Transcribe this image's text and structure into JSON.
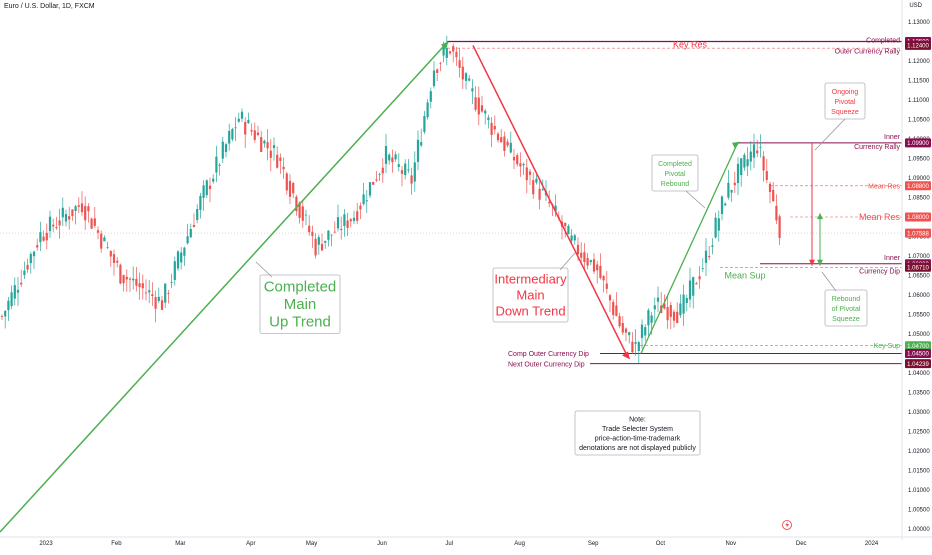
{
  "header": {
    "symbol": "Euro / U.S. Dollar, 1D, FXCM",
    "currency": "USD"
  },
  "colors": {
    "up_candle": "#26a69a",
    "down_candle": "#ef5350",
    "green_line": "#4caf50",
    "red_line": "#f23645",
    "maroon_line": "#880e4f",
    "dark_maroon_tag": "#7b1030"
  },
  "chart_data": {
    "type": "candlestick",
    "ylim": [
      1.0,
      1.1325
    ],
    "y_ticks": [
      "1.13000",
      "1.12500",
      "1.12000",
      "1.11500",
      "1.11000",
      "1.10500",
      "1.10000",
      "1.09500",
      "1.09000",
      "1.08500",
      "1.08000",
      "1.07500",
      "1.07000",
      "1.06500",
      "1.06000",
      "1.05500",
      "1.05000",
      "1.04500",
      "1.04000",
      "1.03500",
      "1.03000",
      "1.02500",
      "1.02000",
      "1.01500",
      "1.01000",
      "1.00500",
      "1.00000"
    ],
    "x_labels": [
      "2023",
      "Feb",
      "Mar",
      "Apr",
      "May",
      "Jun",
      "Jul",
      "Aug",
      "Sep",
      "Oct",
      "Nov",
      "Dec",
      "2024",
      "Feb"
    ],
    "price_tags": [
      {
        "value": 1.125,
        "text": "1.12500",
        "color": "#880e4f"
      },
      {
        "value": 1.124,
        "text": "1.12400",
        "color": "#7b1030"
      },
      {
        "value": 1.099,
        "text": "1.09900",
        "color": "#880e4f"
      },
      {
        "value": 1.088,
        "text": "1.08800",
        "color": "#ef5350"
      },
      {
        "value": 1.08,
        "text": "1.08000",
        "color": "#ef5350"
      },
      {
        "value": 1.07588,
        "text": "1.07588",
        "color": "#ef5350"
      },
      {
        "value": 1.068,
        "text": "1.06800",
        "color": "#880e4f"
      },
      {
        "value": 1.0671,
        "text": "1.06710",
        "color": "#7b1030"
      },
      {
        "value": 1.047,
        "text": "1.04700",
        "color": "#4caf50"
      },
      {
        "value": 1.045,
        "text": "1.04500",
        "color": "#880e4f"
      },
      {
        "value": 1.04239,
        "text": "1.04239",
        "color": "#7b1030"
      }
    ],
    "levels": [
      {
        "name": "Key Res",
        "value": 1.124
      },
      {
        "name": "Completed Outer Currency Rally",
        "value": 1.125
      },
      {
        "name": "Inner Currency Rally",
        "value": 1.099
      },
      {
        "name": "Mean Res",
        "value": 1.088
      },
      {
        "name": "Mean Res",
        "value": 1.08
      },
      {
        "name": "Inner Currency Dip",
        "value": 1.068
      },
      {
        "name": "Mean Sup",
        "value": 1.0671
      },
      {
        "name": "Key Sup",
        "value": 1.047
      },
      {
        "name": "Comp Outer Currency Dip",
        "value": 1.045
      },
      {
        "name": "Next Outer Currency Dip",
        "value": 1.04239
      }
    ],
    "annotations": {
      "key_res": "Key Res",
      "completed": "Completed",
      "outer_currency_rally": "Outer Currency Rally",
      "inner_1": "Inner",
      "currency_rally": "Currency Rally",
      "mean_res_small": "Mean Res",
      "mean_res_big": "Mean Res",
      "inner_2": "Inner",
      "currency_dip": "Currency Dip",
      "mean_sup": "Mean Sup",
      "key_sup": "Key Sup",
      "comp_outer_dip": "Comp Outer Currency Dip",
      "next_outer_dip": "Next Outer Currency Dip",
      "ongoing_pivotal": [
        "Ongoing",
        "Pivotal",
        "Squeeze"
      ],
      "completed_pivotal": [
        "Completed",
        "Pivotal",
        "Rebound"
      ],
      "rebound_pivotal": [
        "Rebound",
        "of Pivotal",
        "Squeeze"
      ],
      "main_up_trend": [
        "Completed",
        "Main",
        "Up Trend"
      ],
      "intermediary_down": [
        "Intermediary",
        "Main",
        "Down Trend"
      ],
      "note": [
        "Note:",
        "Trade Selecter System",
        "price-action-time-trademark",
        "denotations are not displayed publicly"
      ]
    },
    "anchors": [
      {
        "t": 0,
        "p": 1.0545
      },
      {
        "t": 12,
        "p": 1.0755
      },
      {
        "t": 25,
        "p": 1.0835
      },
      {
        "t": 37,
        "p": 1.0655
      },
      {
        "t": 50,
        "p": 1.058
      },
      {
        "t": 62,
        "p": 1.084
      },
      {
        "t": 74,
        "p": 1.1055
      },
      {
        "t": 86,
        "p": 1.0955
      },
      {
        "t": 98,
        "p": 1.0725
      },
      {
        "t": 110,
        "p": 1.0805
      },
      {
        "t": 120,
        "p": 1.0955
      },
      {
        "t": 128,
        "p": 1.0895
      },
      {
        "t": 135,
        "p": 1.1185
      },
      {
        "t": 140,
        "p": 1.1235
      },
      {
        "t": 145,
        "p": 1.114
      },
      {
        "t": 152,
        "p": 1.1045
      },
      {
        "t": 160,
        "p": 1.095
      },
      {
        "t": 170,
        "p": 1.0845
      },
      {
        "t": 178,
        "p": 1.0735
      },
      {
        "t": 186,
        "p": 1.0665
      },
      {
        "t": 194,
        "p": 1.0505
      },
      {
        "t": 198,
        "p": 1.0465
      },
      {
        "t": 204,
        "p": 1.0575
      },
      {
        "t": 212,
        "p": 1.0555
      },
      {
        "t": 220,
        "p": 1.0695
      },
      {
        "t": 226,
        "p": 1.0855
      },
      {
        "t": 232,
        "p": 1.0935
      },
      {
        "t": 236,
        "p": 1.0985
      },
      {
        "t": 240,
        "p": 1.0865
      },
      {
        "t": 243,
        "p": 1.0775
      }
    ]
  }
}
